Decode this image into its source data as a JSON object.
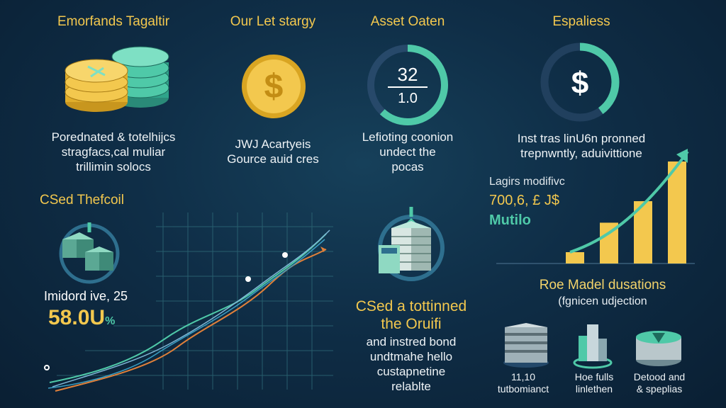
{
  "colors": {
    "background": "#0f2e47",
    "accent_yellow": "#f3c84e",
    "accent_teal": "#4fc9a8",
    "text": "#eef3f6"
  },
  "col1": {
    "title": "Emorfands Tagaltir",
    "icon": "coin-stack-icon",
    "lines": [
      "Porednated & totelhijcs",
      "stragfacs,cal muliar",
      "trillimin solocs"
    ]
  },
  "col2": {
    "title": "Our Let stargy",
    "icon": "dollar-coin-icon",
    "lines": [
      "JWJ Acartyeis",
      "Gource auid cres"
    ]
  },
  "col3": {
    "title": "Asset Oaten",
    "gauge_top": "32",
    "gauge_bottom": "1.0",
    "gauge_fraction": 0.62,
    "lines": [
      "Lefioting coonion",
      "undect the",
      "pocas"
    ]
  },
  "col4": {
    "title": "Espaliess",
    "icon": "dollar-ring-icon",
    "ring_fraction": 0.4,
    "lines": [
      "Inst tras linU6n pronned",
      "trepnwntly, aduivittione"
    ]
  },
  "left_panel": {
    "title": "CSed Thefcoil",
    "icon": "server-cubes-icon",
    "stat_label": "Imidord ive, 25",
    "stat_value": "58.0U",
    "stat_suffix": "%"
  },
  "middle_panel": {
    "icon": "server-stack-icon",
    "heading": [
      "CSed a tottinned",
      "the Oruifi"
    ],
    "lines": [
      "and instred bond",
      "undtmahe hello",
      "custapnetine",
      "relablte"
    ]
  },
  "growth_panel": {
    "label": "Lagirs modifivc",
    "value": "700,6, £ J$",
    "sub": "Mutilo",
    "bars": [
      0.1,
      0.36,
      0.55,
      0.9
    ],
    "arrow_icon": "trend-arrow-icon"
  },
  "role_panel": {
    "title": "Roe Madel dusations",
    "subtitle": "(fgnicen udjection",
    "items": [
      {
        "icon": "server-rack-icon",
        "lines": [
          "11,10",
          "tutbomianct"
        ]
      },
      {
        "icon": "city-tower-icon",
        "lines": [
          "Hoe fulls",
          "linlethen"
        ]
      },
      {
        "icon": "coin-pile-icon",
        "lines": [
          "Detood and",
          "& speplias"
        ]
      }
    ]
  }
}
